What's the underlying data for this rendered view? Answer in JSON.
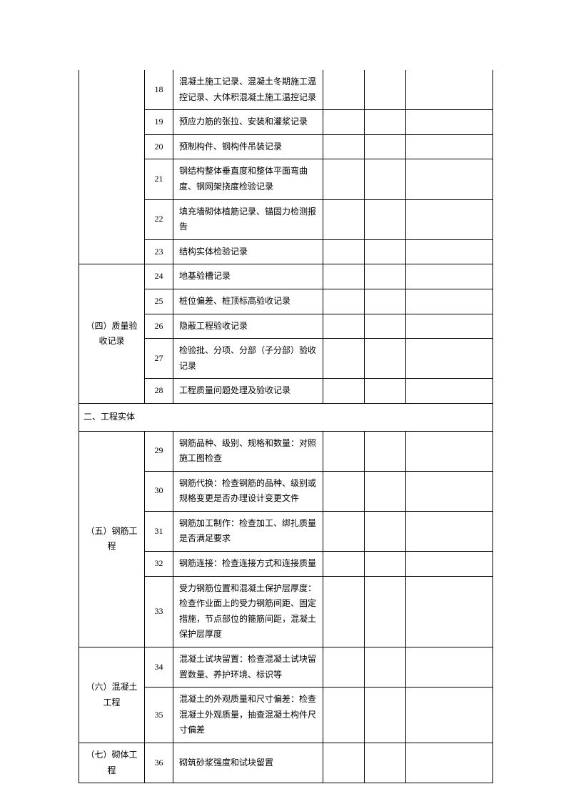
{
  "groups": [
    {
      "category": "",
      "openTop": true,
      "rows": [
        {
          "num": "18",
          "desc": "混凝土施工记录、混凝土冬期施工温控记录、大体积混凝土施工温控记录"
        },
        {
          "num": "19",
          "desc": "预应力筋的张拉、安装和灌浆记录"
        },
        {
          "num": "20",
          "desc": "预制构件、钢构件吊装记录"
        },
        {
          "num": "21",
          "desc": "钢结构整体垂直度和整体平面弯曲度、钢网架挠度检验记录"
        },
        {
          "num": "22",
          "desc": "填充墙砌体植筋记录、锚固力检测报告"
        },
        {
          "num": "23",
          "desc": "结构实体检验记录"
        }
      ]
    },
    {
      "category": "（四）质量验收记录",
      "rows": [
        {
          "num": "24",
          "desc": "地基验槽记录"
        },
        {
          "num": "25",
          "desc": "桩位偏差、桩顶标高验收记录"
        },
        {
          "num": "26",
          "desc": "隐蔽工程验收记录"
        },
        {
          "num": "27",
          "desc": "检验批、分项、分部（子分部）验收记录"
        },
        {
          "num": "28",
          "desc": "工程质量问题处理及验收记录"
        }
      ]
    }
  ],
  "sectionHeader": "二、工程实体",
  "groups2": [
    {
      "category": "（五）钢筋工程",
      "rows": [
        {
          "num": "29",
          "desc": "钢筋品种、级别、规格和数量：对照施工图检查"
        },
        {
          "num": "30",
          "desc": "钢筋代换：检查钢筋的品种、级别或规格变更是否办理设计变更文件"
        },
        {
          "num": "31",
          "desc": "钢筋加工制作：检查加工、绑扎质量是否满足要求"
        },
        {
          "num": "32",
          "desc": "钢筋连接：检查连接方式和连接质量"
        },
        {
          "num": "33",
          "desc": "受力钢筋位置和混凝土保护层厚度：检查作业面上的受力钢筋间距、固定措施，节点部位的箍筋间距，混凝土保护层厚度"
        }
      ]
    },
    {
      "category": "（六）混凝土工程",
      "rows": [
        {
          "num": "34",
          "desc": "混凝土试块留置：检查混凝土试块留置数量、养护环境、标识等"
        },
        {
          "num": "35",
          "desc": "混凝土的外观质量和尺寸偏差：检查混凝土外观质量，抽查混凝土构件尺寸偏差"
        }
      ]
    },
    {
      "category": "（七）砌体工程",
      "rows": [
        {
          "num": "36",
          "desc": "砌筑砂浆强度和试块留置"
        }
      ]
    }
  ]
}
